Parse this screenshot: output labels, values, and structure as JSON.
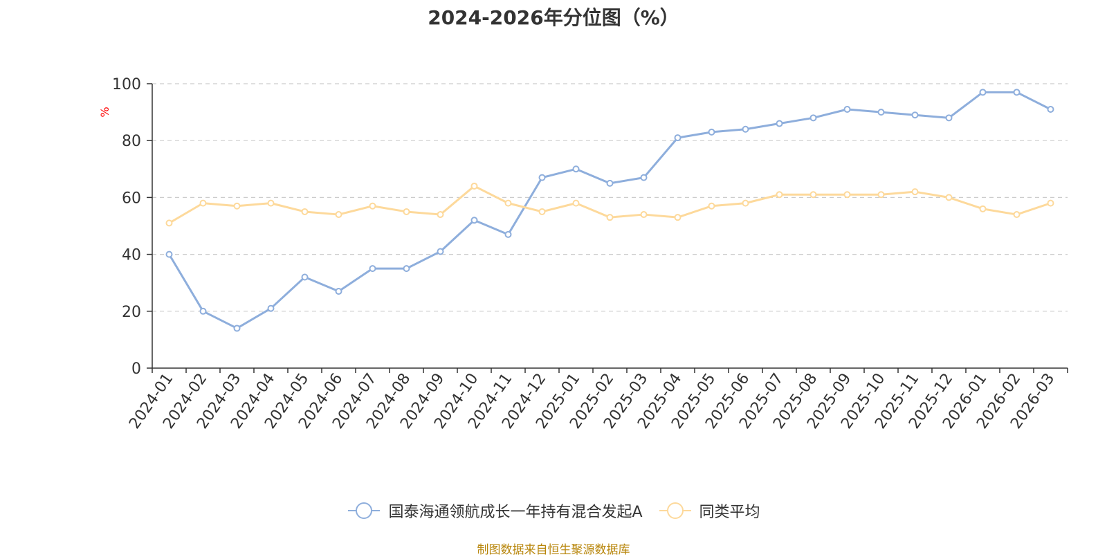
{
  "chart_data": {
    "type": "line",
    "title": "2024-2026年分位图（%）",
    "ylabel": "%",
    "xlabel": "",
    "ylim": [
      0,
      100
    ],
    "yticks": [
      0,
      20,
      40,
      60,
      80,
      100
    ],
    "grid": true,
    "legend_position": "bottom",
    "categories": [
      "2024-01",
      "2024-02",
      "2024-03",
      "2024-04",
      "2024-05",
      "2024-06",
      "2024-07",
      "2024-08",
      "2024-09",
      "2024-10",
      "2024-11",
      "2024-12",
      "2025-01",
      "2025-02",
      "2025-03",
      "2025-04",
      "2025-05",
      "2025-06",
      "2025-07",
      "2025-08",
      "2025-09",
      "2025-10",
      "2025-11",
      "2025-12",
      "2026-01",
      "2026-02",
      "2026-03"
    ],
    "series": [
      {
        "name": "国泰海通领航成长一年持有混合发起A",
        "color": "#8eaedc",
        "values": [
          40,
          20,
          14,
          21,
          32,
          27,
          35,
          35,
          41,
          52,
          47,
          67,
          70,
          65,
          67,
          81,
          83,
          84,
          86,
          88,
          91,
          90,
          89,
          88,
          97,
          97,
          91
        ]
      },
      {
        "name": "同类平均",
        "color": "#fdd99b",
        "values": [
          51,
          58,
          57,
          58,
          55,
          54,
          57,
          55,
          54,
          64,
          58,
          55,
          58,
          53,
          54,
          53,
          57,
          58,
          61,
          61,
          61,
          61,
          62,
          60,
          56,
          54,
          58
        ]
      }
    ]
  },
  "source_text": "制图数据来自恒生聚源数据库"
}
